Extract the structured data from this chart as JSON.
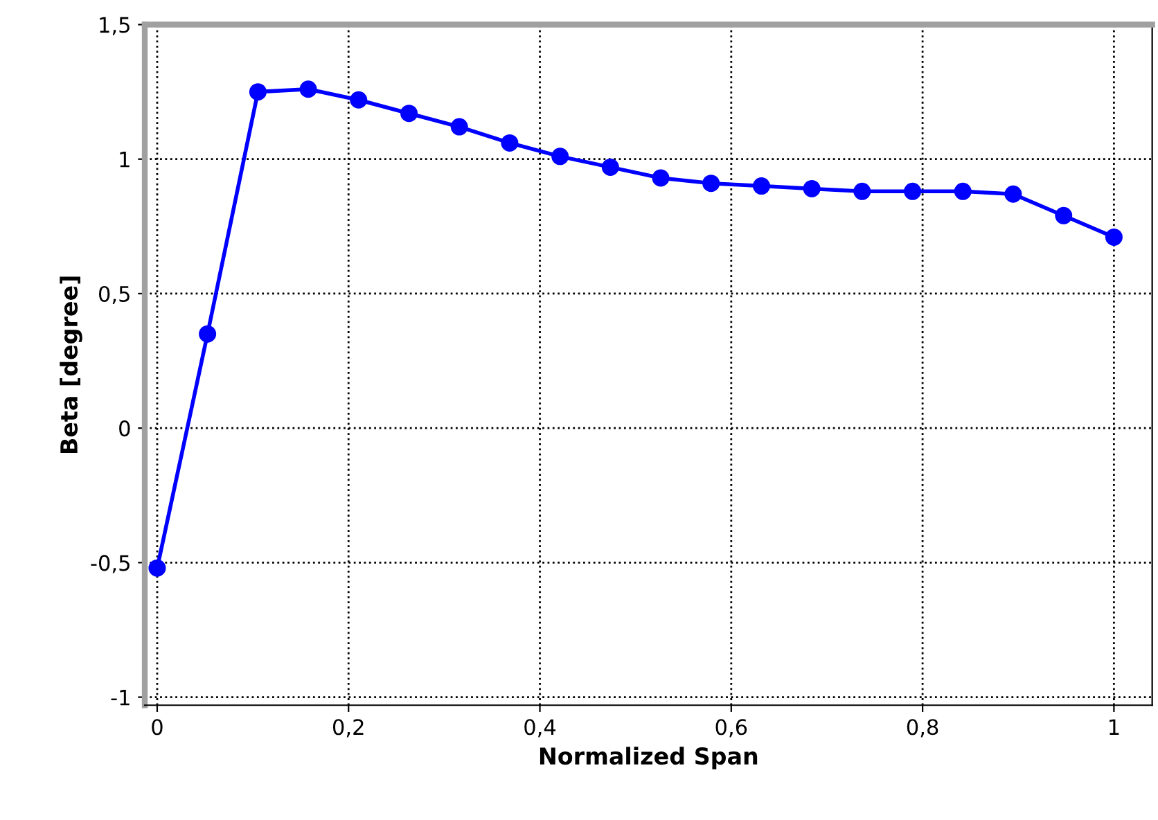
{
  "chart_data": {
    "type": "line",
    "xlabel": "Normalized Span",
    "ylabel": "Beta [degree]",
    "x": [
      0,
      0.0526,
      0.1053,
      0.1579,
      0.2105,
      0.2632,
      0.3158,
      0.3684,
      0.4211,
      0.4737,
      0.5263,
      0.5789,
      0.6316,
      0.6842,
      0.7368,
      0.7895,
      0.8421,
      0.8947,
      0.9474,
      1
    ],
    "series": [
      {
        "color": "#0000ff",
        "values": [
          -0.52,
          0.35,
          1.25,
          1.26,
          1.22,
          1.17,
          1.12,
          1.06,
          1.01,
          0.97,
          0.93,
          0.91,
          0.9,
          0.89,
          0.88,
          0.88,
          0.88,
          0.87,
          0.79,
          0.71
        ]
      }
    ],
    "xlim": [
      -0.013,
      1.04
    ],
    "ylim": [
      -1.03,
      1.5
    ],
    "xticks": [
      0,
      {
        "value": 0.2,
        "label": "0,2"
      },
      {
        "value": 0.4,
        "label": "0,4"
      },
      {
        "value": 0.6,
        "label": "0,6"
      },
      {
        "value": 0.8,
        "label": "0,8"
      },
      1
    ],
    "yticks": [
      -1,
      {
        "value": -0.5,
        "label": "-0,5"
      },
      0,
      {
        "value": 0.5,
        "label": "0,5"
      },
      1,
      {
        "value": 1.5,
        "label": "1,5"
      }
    ],
    "grid": true,
    "marker": "circle",
    "line_style": "solid",
    "legend": false
  }
}
